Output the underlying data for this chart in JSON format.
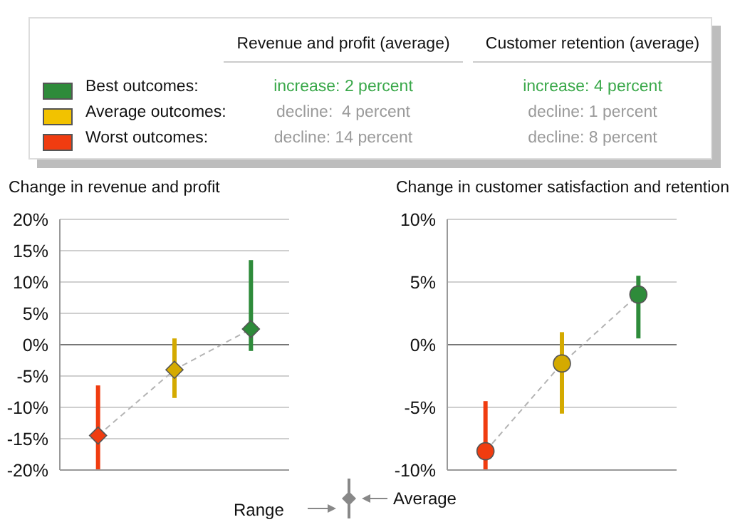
{
  "chart_data": [
    {
      "type": "other",
      "annotations": [
        "Revenue and profit (average)",
        "Customer retention (average)",
        "Best outcomes:",
        "increase: 2 percent",
        "increase: 4 percent",
        "Average outcomes:",
        "decline:  4 percent",
        "decline: 1 percent",
        "Worst outcomes:",
        "decline: 14 percent",
        "decline: 8 percent"
      ]
    },
    {
      "type": "scatter",
      "title": "Change in revenue and profit",
      "categories": [
        null,
        null,
        null
      ],
      "ylim": [
        -20,
        20
      ],
      "yticks": [
        {
          "value": -20,
          "label": "-20%"
        },
        {
          "value": -15,
          "label": "-15%"
        },
        {
          "value": -10,
          "label": "-10%"
        },
        {
          "value": -5,
          "label": "-5%"
        },
        {
          "value": 0,
          "label": "0%"
        },
        {
          "value": 5,
          "label": "5%"
        },
        {
          "value": 10,
          "label": "10%"
        },
        {
          "value": 15,
          "label": "15%"
        },
        {
          "value": 20,
          "label": "20%"
        }
      ],
      "grid": "y",
      "tick_labels": "y",
      "marker": "diamond",
      "series": [
        {
          "type": "line",
          "color": "#b4b4b4",
          "line_style": "dashed",
          "marker": "none",
          "values": [
            -14.5,
            -4,
            2.5
          ]
        },
        {
          "type": "scatter",
          "colors": [
            "#f03c10",
            "#d4aa00",
            "#2e8b3a"
          ],
          "values": [
            -14.5,
            -4,
            2.5
          ],
          "errors": [
            [
              -20,
              -6.5
            ],
            [
              -8.5,
              1
            ],
            [
              -1,
              13.5
            ]
          ]
        }
      ]
    },
    {
      "type": "scatter",
      "title": "Change in customer satisfaction and retention",
      "categories": [
        null,
        null,
        null
      ],
      "ylim": [
        -10,
        10
      ],
      "yticks": [
        {
          "value": -10,
          "label": "-10%"
        },
        {
          "value": -5,
          "label": "-5%"
        },
        {
          "value": 0,
          "label": "0%"
        },
        {
          "value": 5,
          "label": "5%"
        },
        {
          "value": 10,
          "label": "10%"
        }
      ],
      "grid": "y",
      "tick_labels": "y",
      "marker": "circle",
      "series": [
        {
          "type": "line",
          "color": "#b4b4b4",
          "line_style": "dashed",
          "marker": "none",
          "values": [
            -8.5,
            -1.5,
            4
          ]
        },
        {
          "type": "scatter",
          "colors": [
            "#f03c10",
            "#d4aa00",
            "#2e8b3a"
          ],
          "values": [
            -8.5,
            -1.5,
            4
          ],
          "errors": [
            [
              -10,
              -4.5
            ],
            [
              -5.5,
              1
            ],
            [
              0.5,
              5.5
            ]
          ]
        }
      ]
    },
    {
      "type": "other",
      "annotations": [
        "Range",
        "Average"
      ]
    }
  ]
}
